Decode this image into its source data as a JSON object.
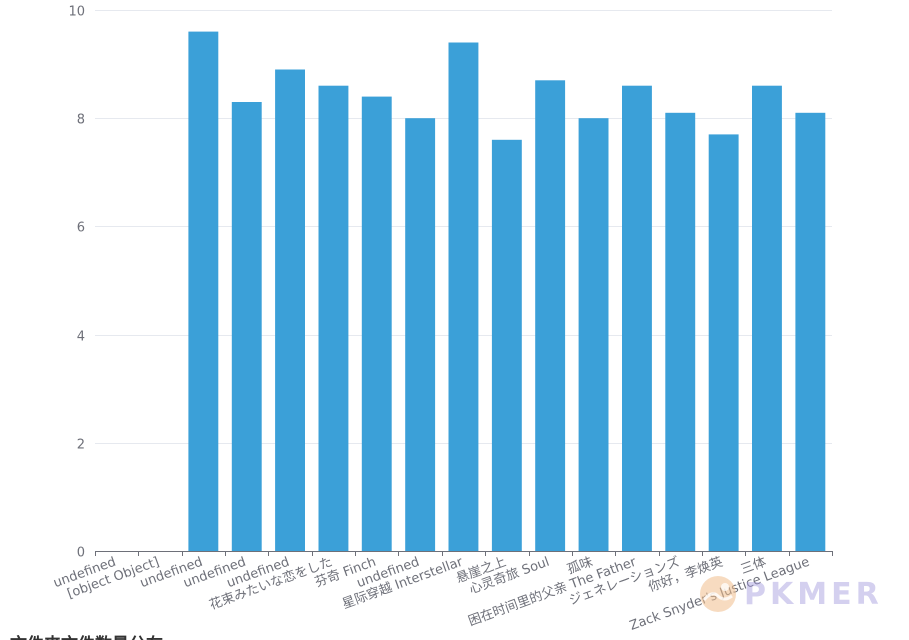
{
  "chart_data": {
    "type": "bar",
    "categories": [
      "undefined",
      "[object Object]",
      "undefined",
      "undefined",
      "undefined",
      "花束みたいな恋をした",
      "芬奇 Finch",
      "undefined",
      "星际穿越 Interstellar",
      "悬崖之上",
      "心灵奇旅 Soul",
      "孤味",
      "困在时间里的父亲 The Father",
      "ジェネレーションズ",
      "你好，李焕英",
      "三体",
      "Zack Snyder's Justice League"
    ],
    "values": [
      0,
      0,
      9.6,
      8.3,
      8.9,
      8.6,
      8.4,
      8.0,
      9.4,
      7.6,
      8.7,
      8.0,
      8.6,
      8.1,
      7.7,
      8.6,
      8.1
    ],
    "ylim": [
      0,
      10
    ],
    "yticks": [
      0,
      2,
      4,
      6,
      8,
      10
    ],
    "grid": true,
    "title": "",
    "xlabel": "",
    "ylabel": "",
    "colors": {
      "bar": "#3ba0d8"
    }
  },
  "footer": {
    "partial_title": "文件夹文件数量分布"
  },
  "watermark": {
    "text": "PKMER"
  }
}
